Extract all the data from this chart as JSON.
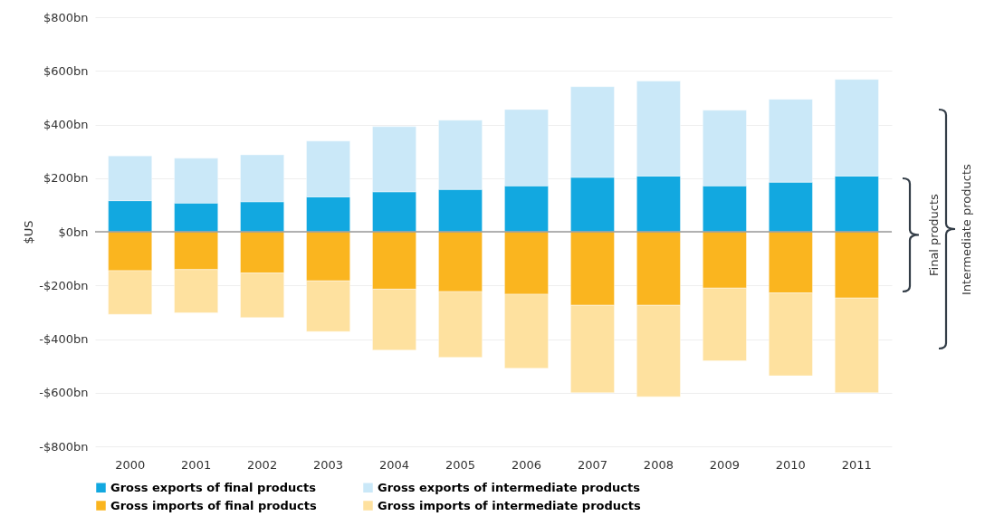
{
  "chart_data": {
    "type": "bar",
    "stacked": true,
    "ylabel": "$US",
    "categories": [
      "2000",
      "2001",
      "2002",
      "2003",
      "2004",
      "2005",
      "2006",
      "2007",
      "2008",
      "2009",
      "2010",
      "2011"
    ],
    "series": [
      {
        "name": "Gross exports of final products",
        "color": "#12a8e0",
        "values": [
          116,
          107,
          112,
          130,
          149,
          158,
          171,
          203,
          208,
          171,
          185,
          208
        ]
      },
      {
        "name": "Gross exports of intermediate products",
        "color": "#cae8f8",
        "values": [
          167,
          167,
          175,
          208,
          243,
          258,
          285,
          338,
          354,
          282,
          309,
          360
        ]
      },
      {
        "name": "Gross imports of final products",
        "color": "#fab51f",
        "values": [
          -145,
          -141,
          -154,
          -183,
          -214,
          -223,
          -233,
          -274,
          -274,
          -210,
          -228,
          -247
        ]
      },
      {
        "name": "Gross imports of intermediate products",
        "color": "#fee19f",
        "values": [
          -163,
          -161,
          -166,
          -189,
          -227,
          -245,
          -276,
          -326,
          -341,
          -271,
          -309,
          -353
        ]
      }
    ],
    "ylim": [
      -800,
      800
    ],
    "yticks": [
      {
        "value": -800,
        "label": "-$800bn"
      },
      {
        "value": -600,
        "label": "-$600bn"
      },
      {
        "value": -400,
        "label": "-$400bn"
      },
      {
        "value": -200,
        "label": "-$200bn"
      },
      {
        "value": 0,
        "label": "$0bn"
      },
      {
        "value": 200,
        "label": "$200bn"
      },
      {
        "value": 400,
        "label": "$400bn"
      },
      {
        "value": 600,
        "label": "$600bn"
      },
      {
        "value": 800,
        "label": "$800bn"
      }
    ],
    "ref_lines": [
      {
        "axis": "y",
        "value": 0,
        "color": "#999999"
      }
    ],
    "annotations": [
      "Final products",
      "Intermediate products"
    ],
    "grid": "y",
    "legend": "bottom"
  }
}
